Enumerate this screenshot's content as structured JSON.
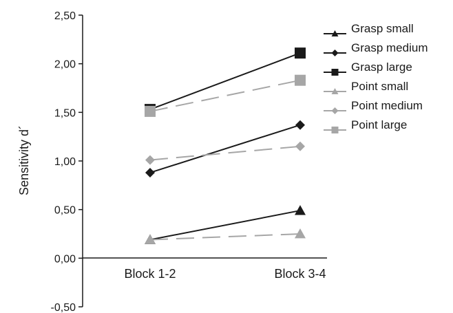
{
  "chart_data": {
    "type": "line",
    "title": "",
    "xlabel": "",
    "ylabel": "Sensitivity d´",
    "categories": [
      "Block 1-2",
      "Block 3-4"
    ],
    "ylim": [
      -0.5,
      2.5
    ],
    "yticks": [
      "-0,50",
      "0,00",
      "0,50",
      "1,00",
      "1,50",
      "2,00",
      "2,50"
    ],
    "grid": false,
    "legend_position": "top-right",
    "series": [
      {
        "name": "Grasp small",
        "values": [
          0.19,
          0.49
        ],
        "marker": "triangle",
        "color": "#1a1a1a",
        "dashed": false
      },
      {
        "name": "Grasp medium",
        "values": [
          0.88,
          1.37
        ],
        "marker": "diamond",
        "color": "#1a1a1a",
        "dashed": false
      },
      {
        "name": "Grasp large",
        "values": [
          1.53,
          2.11
        ],
        "marker": "square",
        "color": "#1a1a1a",
        "dashed": false
      },
      {
        "name": "Point small",
        "values": [
          0.19,
          0.25
        ],
        "marker": "triangle",
        "color": "#a6a6a6",
        "dashed": true
      },
      {
        "name": "Point medium",
        "values": [
          1.01,
          1.15
        ],
        "marker": "diamond",
        "color": "#a6a6a6",
        "dashed": true
      },
      {
        "name": "Point large",
        "values": [
          1.51,
          1.83
        ],
        "marker": "square",
        "color": "#a6a6a6",
        "dashed": true
      }
    ]
  }
}
